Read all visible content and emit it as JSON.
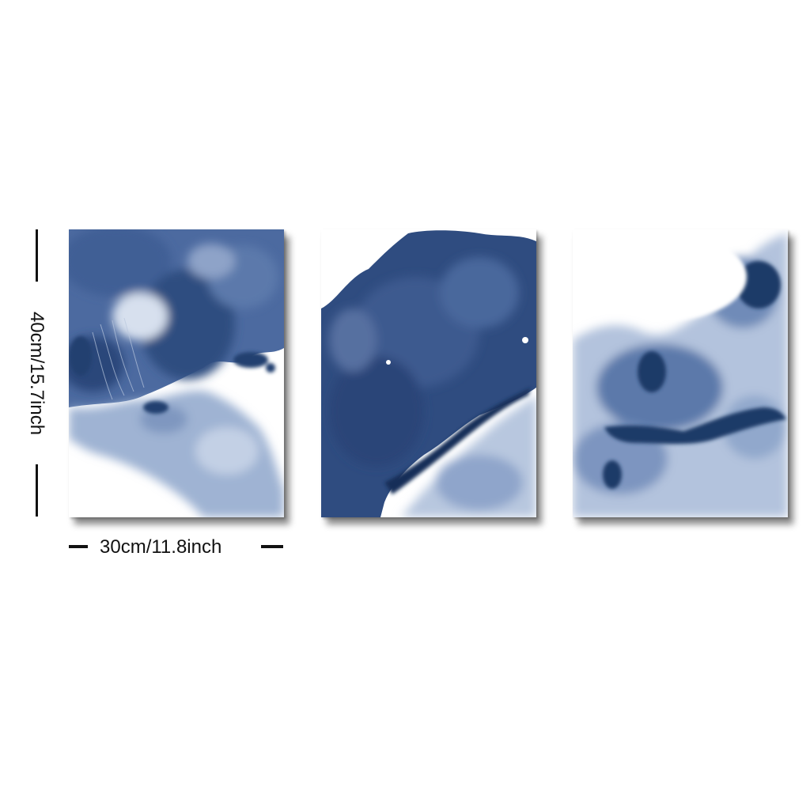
{
  "product": {
    "panel_count": 3,
    "palette": {
      "ink_deep": "#1c3660",
      "ink_mid": "#3e5f93",
      "ink_light": "#a9bad6",
      "paper": "#ffffff"
    }
  },
  "dimensions": {
    "height_label": "40cm/15.7inch",
    "width_label": "30cm/11.8inch"
  }
}
